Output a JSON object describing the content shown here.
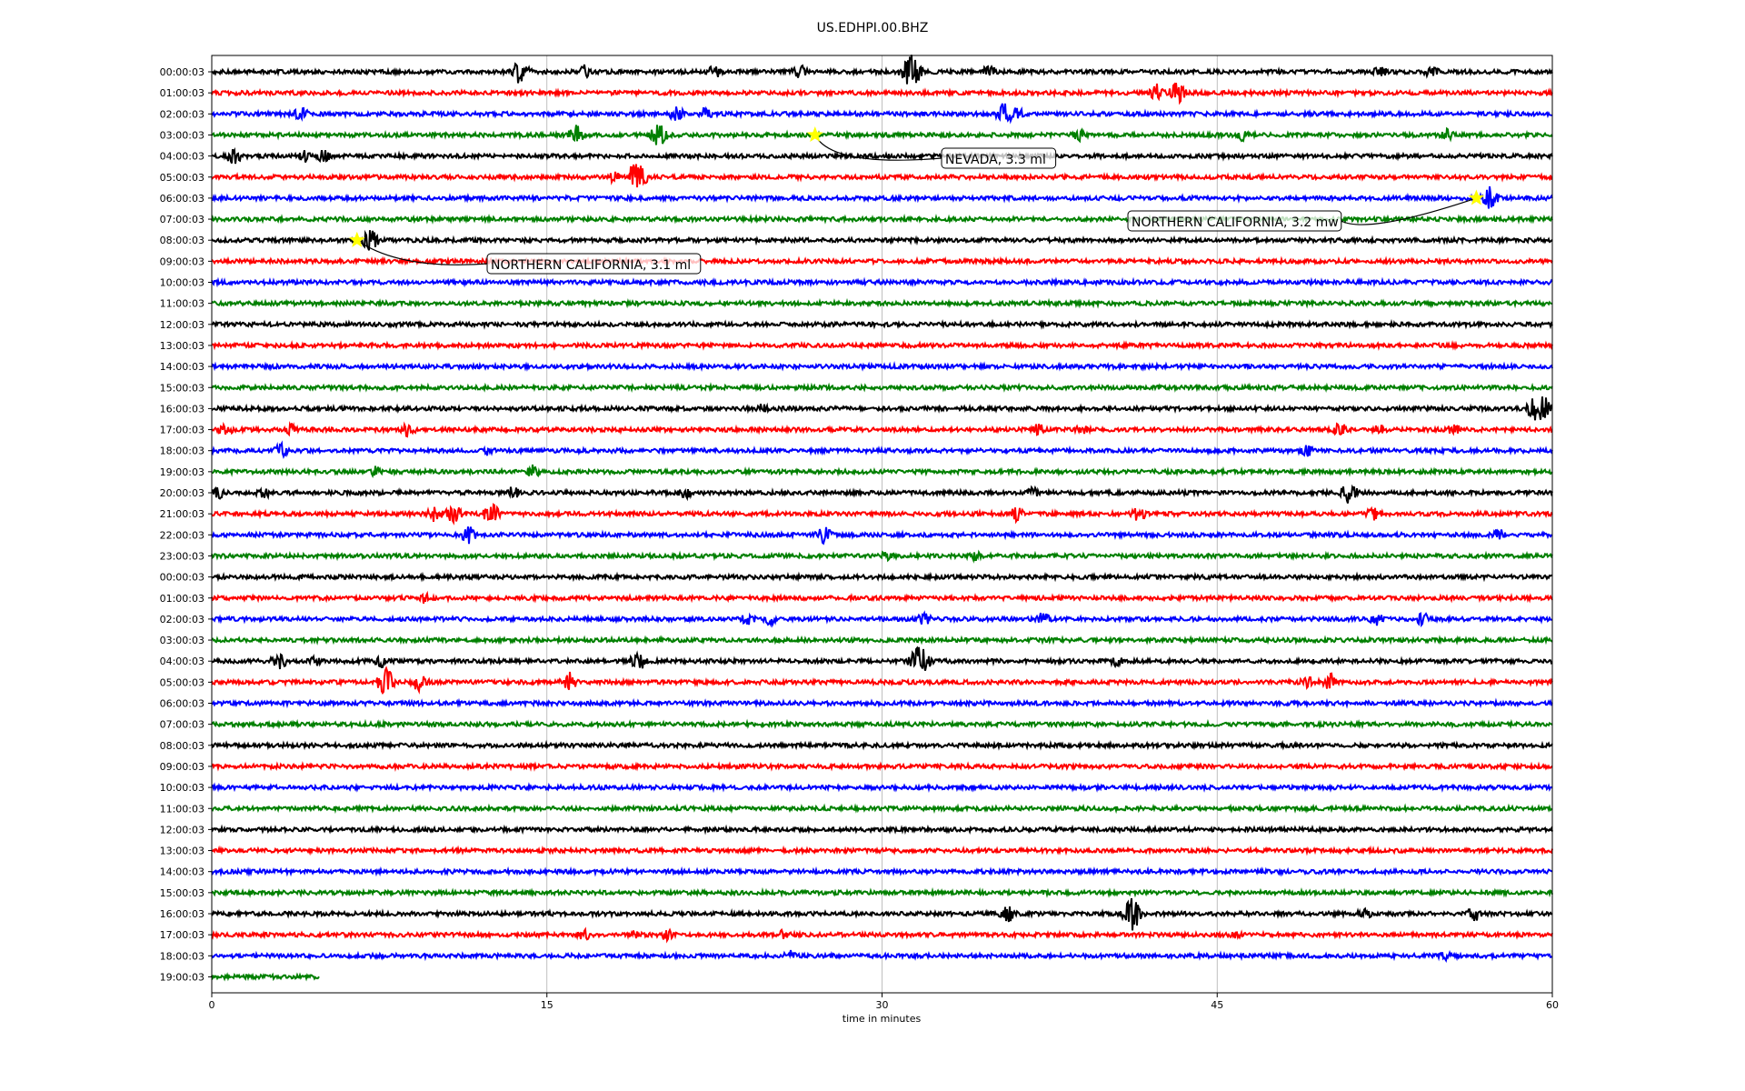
{
  "chart_data": {
    "type": "line",
    "title": "US.EDHPI.00.BHZ",
    "xlabel": "time in minutes",
    "ylabel": "",
    "xlim": [
      0,
      60
    ],
    "xticks": [
      0,
      15,
      30,
      45,
      60
    ],
    "xtick_labels": [
      "0",
      "15",
      "30",
      "45",
      "60"
    ],
    "grid": "vertical gridlines at x ticks",
    "trace_colors": [
      "#000000",
      "#ff0000",
      "#0000ff",
      "#008000"
    ],
    "rows": [
      {
        "label": "00:00:03",
        "color": "#000000",
        "bursts": [
          [
            13.8,
            2.5
          ],
          [
            16.7,
            1.2
          ],
          [
            22.5,
            1.2
          ],
          [
            26.3,
            1.4
          ],
          [
            31.3,
            3.2
          ],
          [
            34.8,
            1.2
          ],
          [
            52.3,
            1.0
          ],
          [
            54.6,
            1.2
          ]
        ]
      },
      {
        "label": "01:00:03",
        "color": "#ff0000",
        "bursts": [
          [
            42.3,
            1.5
          ],
          [
            43.2,
            2.0
          ]
        ]
      },
      {
        "label": "02:00:03",
        "color": "#0000ff",
        "bursts": [
          [
            4.0,
            1.2
          ],
          [
            20.8,
            1.4
          ],
          [
            22.1,
            1.0
          ],
          [
            35.5,
            2.2
          ],
          [
            36.0,
            1.5
          ]
        ]
      },
      {
        "label": "03:00:03",
        "color": "#008000",
        "bursts": [
          [
            16.3,
            1.8
          ],
          [
            20.0,
            2.2
          ],
          [
            38.8,
            1.0
          ],
          [
            46.1,
            1.0
          ],
          [
            55.3,
            1.0
          ]
        ]
      },
      {
        "label": "04:00:03",
        "color": "#000000",
        "bursts": [
          [
            1.0,
            1.6
          ],
          [
            4.2,
            1.2
          ],
          [
            5.0,
            1.2
          ]
        ]
      },
      {
        "label": "05:00:03",
        "color": "#ff0000",
        "bursts": [
          [
            18.0,
            1.2
          ],
          [
            19.0,
            3.0
          ]
        ]
      },
      {
        "label": "06:00:03",
        "color": "#0000ff",
        "bursts": [
          [
            57.2,
            2.0
          ]
        ]
      },
      {
        "label": "07:00:03",
        "color": "#008000",
        "bursts": []
      },
      {
        "label": "08:00:03",
        "color": "#000000",
        "bursts": [
          [
            7.1,
            2.0
          ]
        ]
      },
      {
        "label": "09:00:03",
        "color": "#ff0000",
        "bursts": []
      },
      {
        "label": "10:00:03",
        "color": "#0000ff",
        "bursts": []
      },
      {
        "label": "11:00:03",
        "color": "#008000",
        "bursts": []
      },
      {
        "label": "12:00:03",
        "color": "#000000",
        "bursts": []
      },
      {
        "label": "13:00:03",
        "color": "#ff0000",
        "bursts": []
      },
      {
        "label": "14:00:03",
        "color": "#0000ff",
        "bursts": []
      },
      {
        "label": "15:00:03",
        "color": "#008000",
        "bursts": []
      },
      {
        "label": "16:00:03",
        "color": "#000000",
        "bursts": [
          [
            24.6,
            0.8
          ],
          [
            59.2,
            1.6
          ],
          [
            59.4,
            3.5
          ]
        ]
      },
      {
        "label": "17:00:03",
        "color": "#ff0000",
        "bursts": [
          [
            0.6,
            1.2
          ],
          [
            3.6,
            1.0
          ],
          [
            8.8,
            1.2
          ],
          [
            37.0,
            1.0
          ],
          [
            38.9,
            1.0
          ],
          [
            50.5,
            1.2
          ],
          [
            52.3,
            1.0
          ],
          [
            55.6,
            1.0
          ]
        ]
      },
      {
        "label": "18:00:03",
        "color": "#0000ff",
        "bursts": [
          [
            3.1,
            1.2
          ],
          [
            12.4,
            0.8
          ],
          [
            49.0,
            1.0
          ]
        ]
      },
      {
        "label": "19:00:03",
        "color": "#008000",
        "bursts": [
          [
            7.3,
            1.0
          ],
          [
            14.4,
            1.2
          ]
        ]
      },
      {
        "label": "20:00:03",
        "color": "#000000",
        "bursts": [
          [
            0.3,
            1.0
          ],
          [
            2.3,
            1.2
          ],
          [
            13.5,
            1.2
          ],
          [
            21.2,
            1.0
          ],
          [
            36.8,
            1.0
          ],
          [
            50.9,
            2.0
          ]
        ]
      },
      {
        "label": "21:00:03",
        "color": "#ff0000",
        "bursts": [
          [
            10.0,
            1.5
          ],
          [
            10.8,
            2.0
          ],
          [
            12.5,
            2.0
          ],
          [
            36.0,
            1.4
          ],
          [
            41.5,
            1.4
          ],
          [
            52.0,
            1.4
          ]
        ]
      },
      {
        "label": "22:00:03",
        "color": "#0000ff",
        "bursts": [
          [
            11.5,
            1.6
          ],
          [
            27.4,
            1.6
          ],
          [
            57.6,
            1.0
          ]
        ]
      },
      {
        "label": "23:00:03",
        "color": "#008000",
        "bursts": [
          [
            30.2,
            0.8
          ],
          [
            34.2,
            0.8
          ]
        ]
      },
      {
        "label": "00:00:03",
        "color": "#000000",
        "bursts": []
      },
      {
        "label": "01:00:03",
        "color": "#ff0000",
        "bursts": [
          [
            9.5,
            0.8
          ]
        ]
      },
      {
        "label": "02:00:03",
        "color": "#0000ff",
        "bursts": [
          [
            24.0,
            1.0
          ],
          [
            25.0,
            1.0
          ],
          [
            31.9,
            1.2
          ],
          [
            37.2,
            1.4
          ],
          [
            52.1,
            1.2
          ],
          [
            54.2,
            1.2
          ]
        ]
      },
      {
        "label": "03:00:03",
        "color": "#008000",
        "bursts": []
      },
      {
        "label": "04:00:03",
        "color": "#000000",
        "bursts": [
          [
            3.0,
            1.6
          ],
          [
            4.6,
            1.2
          ],
          [
            7.6,
            1.0
          ],
          [
            19.1,
            1.8
          ],
          [
            31.7,
            3.0
          ],
          [
            40.5,
            0.8
          ]
        ]
      },
      {
        "label": "05:00:03",
        "color": "#ff0000",
        "bursts": [
          [
            7.8,
            2.5
          ],
          [
            9.3,
            1.8
          ],
          [
            16.0,
            1.8
          ],
          [
            49.0,
            1.2
          ],
          [
            50.0,
            2.0
          ]
        ]
      },
      {
        "label": "06:00:03",
        "color": "#0000ff",
        "bursts": []
      },
      {
        "label": "07:00:03",
        "color": "#008000",
        "bursts": []
      },
      {
        "label": "08:00:03",
        "color": "#000000",
        "bursts": []
      },
      {
        "label": "09:00:03",
        "color": "#ff0000",
        "bursts": []
      },
      {
        "label": "10:00:03",
        "color": "#0000ff",
        "bursts": []
      },
      {
        "label": "11:00:03",
        "color": "#008000",
        "bursts": []
      },
      {
        "label": "12:00:03",
        "color": "#000000",
        "bursts": []
      },
      {
        "label": "13:00:03",
        "color": "#ff0000",
        "bursts": []
      },
      {
        "label": "14:00:03",
        "color": "#0000ff",
        "bursts": []
      },
      {
        "label": "15:00:03",
        "color": "#008000",
        "bursts": []
      },
      {
        "label": "16:00:03",
        "color": "#000000",
        "bursts": [
          [
            35.6,
            1.8
          ],
          [
            41.2,
            3.0
          ],
          [
            51.6,
            1.0
          ],
          [
            56.5,
            1.4
          ]
        ]
      },
      {
        "label": "17:00:03",
        "color": "#ff0000",
        "bursts": [
          [
            16.7,
            1.0
          ],
          [
            18.9,
            1.0
          ],
          [
            20.4,
            1.4
          ],
          [
            25.6,
            0.8
          ],
          [
            45.8,
            0.6
          ]
        ]
      },
      {
        "label": "18:00:03",
        "color": "#0000ff",
        "bursts": [
          [
            25.9,
            0.8
          ],
          [
            55.2,
            0.8
          ]
        ]
      },
      {
        "label": "19:00:03",
        "color": "#008000",
        "bursts": [],
        "end": 4.8
      }
    ],
    "annotations": [
      {
        "text": "NEVADA, 3.3 ml",
        "row": 3,
        "x": 27.0
      },
      {
        "text": "NORTHERN CALIFORNIA, 3.2 mw",
        "row": 6,
        "x": 56.6
      },
      {
        "text": "NORTHERN CALIFORNIA, 3.1 ml",
        "row": 8,
        "x": 6.5
      }
    ]
  }
}
